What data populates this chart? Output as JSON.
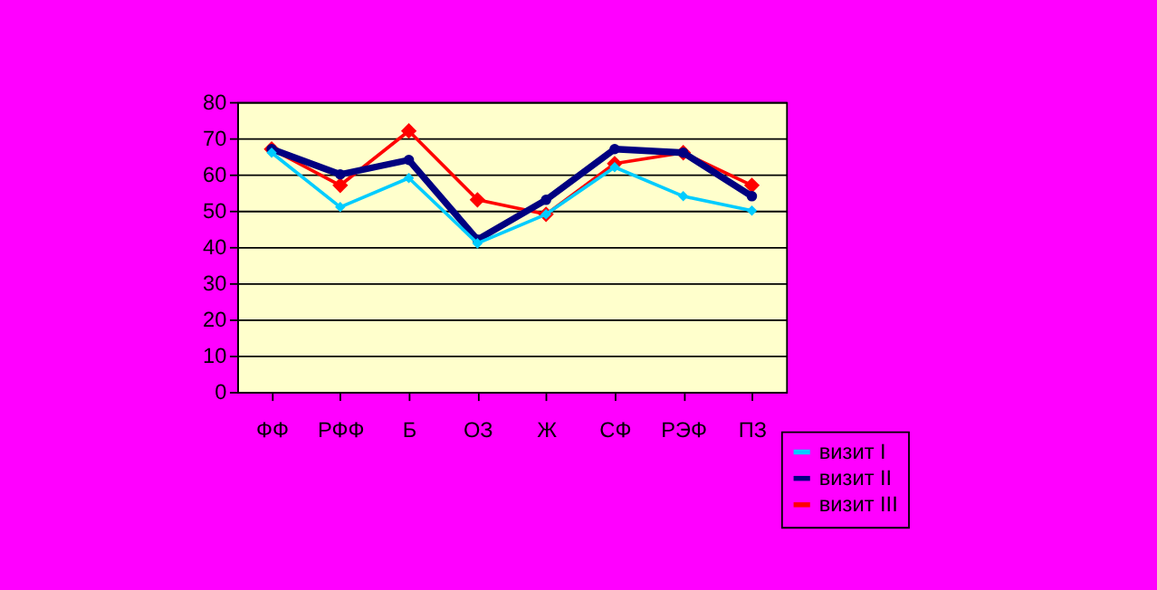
{
  "chart_data": {
    "type": "line",
    "categories": [
      "ФФ",
      "РФФ",
      "Б",
      "ОЗ",
      "Ж",
      "СФ",
      "РЭФ",
      "ПЗ"
    ],
    "series": [
      {
        "name": "визит I",
        "color": "#00ccff",
        "marker": "diamond",
        "values": [
          66,
          51,
          59,
          41,
          49,
          62,
          54,
          50
        ]
      },
      {
        "name": "визит II",
        "color": "#000080",
        "marker": "circle",
        "values": [
          67,
          60,
          64,
          42,
          53,
          67,
          66,
          54
        ]
      },
      {
        "name": "визит III",
        "color": "#ff0000",
        "marker": "diamond",
        "values": [
          67,
          57,
          72,
          53,
          49,
          63,
          66,
          57
        ]
      }
    ],
    "ylim": [
      0,
      80
    ],
    "yticks": [
      0,
      10,
      20,
      30,
      40,
      50,
      60,
      70,
      80
    ],
    "grid": "y",
    "legend": "bottom right",
    "line_style": "solid"
  }
}
